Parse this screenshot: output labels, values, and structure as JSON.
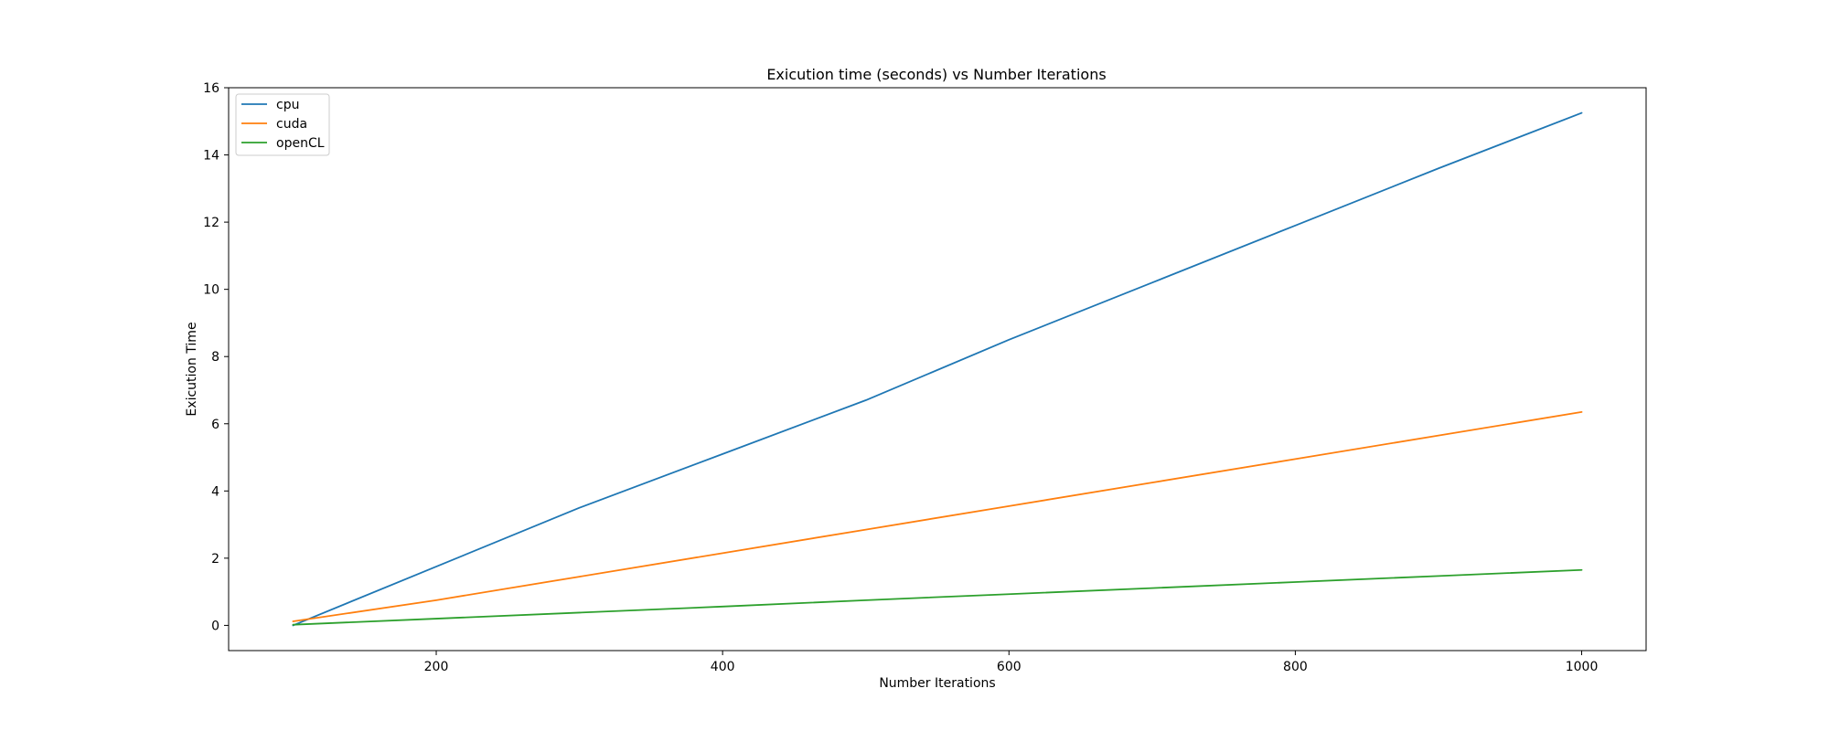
{
  "chart_data": {
    "type": "line",
    "title": "Exicution time (seconds) vs Number Iterations",
    "xlabel": "Number Iterations",
    "ylabel": "Exicution Time",
    "xlim": [
      55,
      1045
    ],
    "ylim": [
      -0.75,
      16
    ],
    "xticks": [
      200,
      400,
      600,
      800,
      1000
    ],
    "yticks": [
      0,
      2,
      4,
      6,
      8,
      10,
      12,
      14,
      16
    ],
    "grid": false,
    "legend_position": "top-left",
    "x": [
      100,
      200,
      300,
      400,
      500,
      600,
      700,
      800,
      900,
      1000
    ],
    "series": [
      {
        "name": "cpu",
        "color": "#1f77b4",
        "values": [
          0.0,
          1.75,
          3.5,
          5.1,
          6.7,
          8.5,
          10.2,
          11.9,
          13.6,
          15.25
        ]
      },
      {
        "name": "cuda",
        "color": "#ff7f0e",
        "values": [
          0.12,
          0.75,
          1.45,
          2.15,
          2.85,
          3.55,
          4.25,
          4.95,
          5.65,
          6.35
        ]
      },
      {
        "name": "openCL",
        "color": "#2ca02c",
        "values": [
          0.02,
          0.2,
          0.38,
          0.56,
          0.75,
          0.93,
          1.11,
          1.29,
          1.47,
          1.65
        ]
      }
    ]
  }
}
